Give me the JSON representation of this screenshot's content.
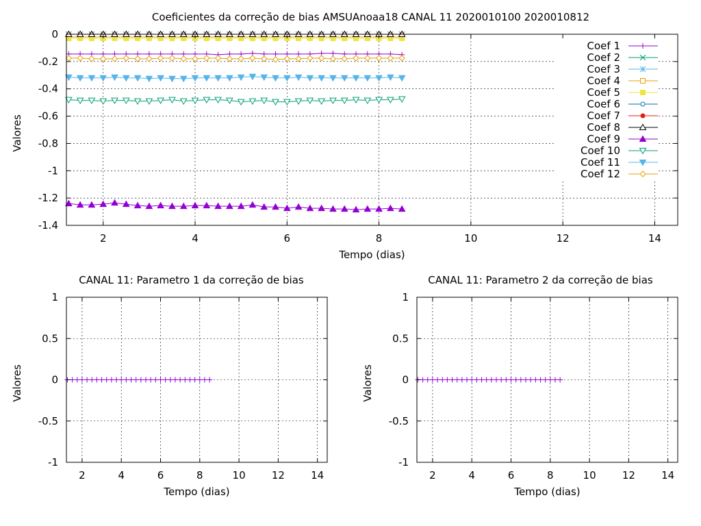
{
  "chart_data": [
    {
      "type": "line",
      "title": "Coeficientes da correção de bias AMSUAnoaa18 CANAL 11 2020010100 2020010812",
      "xlabel": "Tempo (dias)",
      "ylabel": "Valores",
      "xlim": [
        1.2,
        14.5
      ],
      "ylim": [
        -1.4,
        0
      ],
      "xticks": [
        2,
        4,
        6,
        8,
        10,
        12,
        14
      ],
      "yticks": [
        0,
        -0.2,
        -0.4,
        -0.6,
        -0.8,
        -1,
        -1.2,
        -1.4
      ],
      "ytick_labels": [
        "0",
        "-0.2",
        "-0.4",
        "-0.6",
        "-0.8",
        "-1",
        "-1.2",
        "-1.4"
      ],
      "grid": true,
      "legend_position": "top-right",
      "x": [
        1.25,
        1.5,
        1.75,
        2.0,
        2.25,
        2.5,
        2.75,
        3.0,
        3.25,
        3.5,
        3.75,
        4.0,
        4.25,
        4.5,
        4.75,
        5.0,
        5.25,
        5.5,
        5.75,
        6.0,
        6.25,
        6.5,
        6.75,
        7.0,
        7.25,
        7.5,
        7.75,
        8.0,
        8.25,
        8.5
      ],
      "series": [
        {
          "name": "Coef 1",
          "color": "#9400d3",
          "marker": "plus",
          "values": [
            -0.145,
            -0.145,
            -0.145,
            -0.145,
            -0.145,
            -0.145,
            -0.145,
            -0.145,
            -0.145,
            -0.145,
            -0.145,
            -0.145,
            -0.145,
            -0.15,
            -0.145,
            -0.145,
            -0.14,
            -0.145,
            -0.145,
            -0.145,
            -0.145,
            -0.145,
            -0.14,
            -0.14,
            -0.145,
            -0.145,
            -0.145,
            -0.145,
            -0.145,
            -0.15
          ]
        },
        {
          "name": "Coef 2",
          "color": "#009e73",
          "marker": "cross",
          "values": [
            0,
            0,
            0,
            0,
            0,
            0,
            0,
            0,
            0,
            0,
            0,
            0,
            0,
            0,
            0,
            0,
            0,
            0,
            0,
            0,
            0,
            0,
            0,
            0,
            0,
            0,
            0,
            0,
            0,
            0
          ]
        },
        {
          "name": "Coef 3",
          "color": "#56b4e9",
          "marker": "star",
          "values": [
            0,
            0,
            0,
            0,
            0,
            0,
            0,
            0,
            0,
            0,
            0,
            0,
            0,
            0,
            0,
            0,
            0,
            0,
            0,
            0,
            0,
            0,
            0,
            0,
            0,
            0,
            0,
            0,
            0,
            0
          ]
        },
        {
          "name": "Coef 4",
          "color": "#e69f00",
          "marker": "square-open",
          "values": [
            -0.02,
            -0.02,
            -0.02,
            -0.02,
            -0.02,
            -0.02,
            -0.02,
            -0.02,
            -0.02,
            -0.02,
            -0.02,
            -0.02,
            -0.02,
            -0.02,
            -0.02,
            -0.02,
            -0.02,
            -0.02,
            -0.02,
            -0.02,
            -0.02,
            -0.02,
            -0.02,
            -0.02,
            -0.02,
            -0.02,
            -0.02,
            -0.02,
            -0.02,
            -0.02
          ]
        },
        {
          "name": "Coef 5",
          "color": "#f0e442",
          "marker": "square-filled",
          "values": [
            -0.03,
            -0.03,
            -0.03,
            -0.03,
            -0.03,
            -0.03,
            -0.03,
            -0.03,
            -0.03,
            -0.03,
            -0.03,
            -0.03,
            -0.03,
            -0.03,
            -0.03,
            -0.03,
            -0.03,
            -0.03,
            -0.03,
            -0.03,
            -0.03,
            -0.03,
            -0.03,
            -0.03,
            -0.03,
            -0.03,
            -0.03,
            -0.03,
            -0.03,
            -0.03
          ]
        },
        {
          "name": "Coef 6",
          "color": "#0072b2",
          "marker": "circle-open",
          "values": [
            0,
            0,
            0,
            0,
            0,
            0,
            0,
            0,
            0,
            0,
            0,
            0,
            0,
            0,
            0,
            0,
            0,
            0,
            0,
            0,
            0,
            0,
            0,
            0,
            0,
            0,
            0,
            0,
            0,
            0
          ]
        },
        {
          "name": "Coef 7",
          "color": "#e51e10",
          "marker": "circle-filled",
          "values": [
            0,
            0,
            0,
            0,
            0,
            0,
            0,
            0,
            0,
            0,
            0,
            0,
            0,
            0,
            0,
            0,
            0,
            0,
            0,
            0,
            0,
            0,
            0,
            0,
            0,
            0,
            0,
            0,
            0,
            0
          ]
        },
        {
          "name": "Coef 8",
          "color": "#000000",
          "marker": "triangle-open",
          "values": [
            0,
            0,
            0,
            0,
            0,
            0,
            0,
            0,
            0,
            0,
            0,
            0,
            0,
            0,
            0,
            0,
            0,
            0,
            0,
            0,
            0,
            0,
            0,
            0,
            0,
            0,
            0,
            0,
            0,
            0
          ]
        },
        {
          "name": "Coef 9",
          "color": "#9400d3",
          "marker": "triangle-filled",
          "values": [
            -1.24,
            -1.25,
            -1.25,
            -1.245,
            -1.235,
            -1.245,
            -1.255,
            -1.26,
            -1.255,
            -1.26,
            -1.26,
            -1.255,
            -1.255,
            -1.26,
            -1.26,
            -1.26,
            -1.25,
            -1.265,
            -1.265,
            -1.275,
            -1.265,
            -1.275,
            -1.275,
            -1.28,
            -1.28,
            -1.285,
            -1.28,
            -1.28,
            -1.275,
            -1.28
          ]
        },
        {
          "name": "Coef 10",
          "color": "#009e73",
          "marker": "triangle-down-open",
          "values": [
            -0.48,
            -0.485,
            -0.485,
            -0.49,
            -0.485,
            -0.485,
            -0.49,
            -0.49,
            -0.485,
            -0.48,
            -0.49,
            -0.485,
            -0.48,
            -0.48,
            -0.485,
            -0.495,
            -0.49,
            -0.485,
            -0.495,
            -0.495,
            -0.49,
            -0.485,
            -0.49,
            -0.485,
            -0.485,
            -0.48,
            -0.485,
            -0.48,
            -0.48,
            -0.475
          ]
        },
        {
          "name": "Coef 11",
          "color": "#56b4e9",
          "marker": "triangle-down-filled",
          "values": [
            -0.315,
            -0.32,
            -0.32,
            -0.32,
            -0.315,
            -0.32,
            -0.32,
            -0.325,
            -0.32,
            -0.325,
            -0.325,
            -0.32,
            -0.32,
            -0.32,
            -0.32,
            -0.315,
            -0.31,
            -0.315,
            -0.32,
            -0.32,
            -0.315,
            -0.32,
            -0.32,
            -0.32,
            -0.32,
            -0.32,
            -0.32,
            -0.32,
            -0.315,
            -0.32
          ]
        },
        {
          "name": "Coef 12",
          "color": "#e69f00",
          "marker": "diamond-open",
          "values": [
            -0.175,
            -0.175,
            -0.18,
            -0.18,
            -0.18,
            -0.175,
            -0.18,
            -0.18,
            -0.175,
            -0.175,
            -0.18,
            -0.18,
            -0.175,
            -0.175,
            -0.18,
            -0.18,
            -0.175,
            -0.18,
            -0.185,
            -0.18,
            -0.18,
            -0.175,
            -0.175,
            -0.18,
            -0.18,
            -0.175,
            -0.175,
            -0.175,
            -0.175,
            -0.175
          ]
        }
      ]
    },
    {
      "type": "line",
      "title": "CANAL 11: Parametro 1 da correção de bias",
      "xlabel": "Tempo (dias)",
      "ylabel": "Valores",
      "xlim": [
        1.2,
        14.5
      ],
      "ylim": [
        -1,
        1
      ],
      "xticks": [
        2,
        4,
        6,
        8,
        10,
        12,
        14
      ],
      "yticks": [
        1,
        0.5,
        0,
        -0.5,
        -1
      ],
      "ytick_labels": [
        "1",
        "0.5",
        "0",
        "-0.5",
        "-1"
      ],
      "grid": true,
      "x": [
        1.25,
        1.5,
        1.75,
        2.0,
        2.25,
        2.5,
        2.75,
        3.0,
        3.25,
        3.5,
        3.75,
        4.0,
        4.25,
        4.5,
        4.75,
        5.0,
        5.25,
        5.5,
        5.75,
        6.0,
        6.25,
        6.5,
        6.75,
        7.0,
        7.25,
        7.5,
        7.75,
        8.0,
        8.25,
        8.5
      ],
      "series": [
        {
          "color": "#9400d3",
          "marker": "plus",
          "values": [
            0,
            0,
            0,
            0,
            0,
            0,
            0,
            0,
            0,
            0,
            0,
            0,
            0,
            0,
            0,
            0,
            0,
            0,
            0,
            0,
            0,
            0,
            0,
            0,
            0,
            0,
            0,
            0,
            0,
            0
          ]
        }
      ]
    },
    {
      "type": "line",
      "title": "CANAL 11: Parametro 2 da correção de bias",
      "xlabel": "Tempo (dias)",
      "ylabel": "Valores",
      "xlim": [
        1.2,
        14.5
      ],
      "ylim": [
        -1,
        1
      ],
      "xticks": [
        2,
        4,
        6,
        8,
        10,
        12,
        14
      ],
      "yticks": [
        1,
        0.5,
        0,
        -0.5,
        -1
      ],
      "ytick_labels": [
        "1",
        "0.5",
        "0",
        "-0.5",
        "-1"
      ],
      "grid": true,
      "x": [
        1.25,
        1.5,
        1.75,
        2.0,
        2.25,
        2.5,
        2.75,
        3.0,
        3.25,
        3.5,
        3.75,
        4.0,
        4.25,
        4.5,
        4.75,
        5.0,
        5.25,
        5.5,
        5.75,
        6.0,
        6.25,
        6.5,
        6.75,
        7.0,
        7.25,
        7.5,
        7.75,
        8.0,
        8.25,
        8.5
      ],
      "series": [
        {
          "color": "#9400d3",
          "marker": "plus",
          "values": [
            0,
            0,
            0,
            0,
            0,
            0,
            0,
            0,
            0,
            0,
            0,
            0,
            0,
            0,
            0,
            0,
            0,
            0,
            0,
            0,
            0,
            0,
            0,
            0,
            0,
            0,
            0,
            0,
            0,
            0
          ]
        }
      ]
    }
  ]
}
